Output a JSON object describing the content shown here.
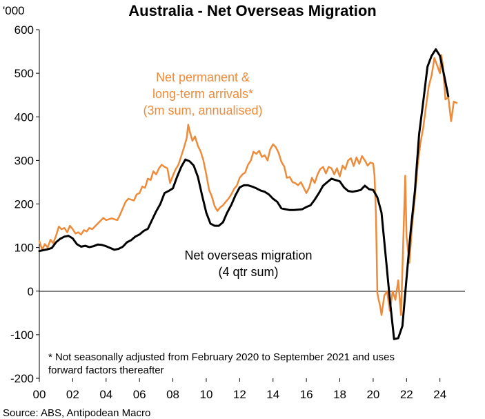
{
  "chart_data": {
    "type": "line",
    "title": "Australia - Net Overseas Migration",
    "y_unit_label": "'000",
    "ylim": [
      -200,
      600
    ],
    "y_ticks": [
      -200,
      -100,
      0,
      100,
      200,
      300,
      400,
      500,
      600
    ],
    "xlim": [
      2000,
      2025.5
    ],
    "x_ticks": [
      2000,
      2002,
      2004,
      2006,
      2008,
      2010,
      2012,
      2014,
      2016,
      2018,
      2020,
      2022,
      2024
    ],
    "x_tick_labels": [
      "00",
      "02",
      "04",
      "06",
      "08",
      "10",
      "12",
      "14",
      "16",
      "18",
      "20",
      "22",
      "24"
    ],
    "grid": false,
    "series": [
      {
        "name": "Net permanent & long-term arrivals* (3m sum, annualised)",
        "color": "#ED8B3A",
        "points": [
          [
            2000.0,
            115
          ],
          [
            2000.17,
            95
          ],
          [
            2000.33,
            108
          ],
          [
            2000.5,
            100
          ],
          [
            2000.67,
            118
          ],
          [
            2000.83,
            110
          ],
          [
            2001.0,
            127
          ],
          [
            2001.17,
            148
          ],
          [
            2001.33,
            142
          ],
          [
            2001.5,
            145
          ],
          [
            2001.67,
            135
          ],
          [
            2001.83,
            150
          ],
          [
            2002.0,
            142
          ],
          [
            2002.17,
            132
          ],
          [
            2002.33,
            135
          ],
          [
            2002.5,
            130
          ],
          [
            2002.67,
            140
          ],
          [
            2002.83,
            137
          ],
          [
            2003.0,
            145
          ],
          [
            2003.17,
            142
          ],
          [
            2003.5,
            155
          ],
          [
            2003.83,
            168
          ],
          [
            2004.0,
            163
          ],
          [
            2004.33,
            167
          ],
          [
            2004.67,
            163
          ],
          [
            2004.83,
            175
          ],
          [
            2005.0,
            190
          ],
          [
            2005.17,
            205
          ],
          [
            2005.33,
            212
          ],
          [
            2005.67,
            208
          ],
          [
            2005.83,
            222
          ],
          [
            2006.0,
            225
          ],
          [
            2006.17,
            240
          ],
          [
            2006.33,
            237
          ],
          [
            2006.5,
            258
          ],
          [
            2006.67,
            255
          ],
          [
            2006.83,
            275
          ],
          [
            2007.0,
            268
          ],
          [
            2007.17,
            282
          ],
          [
            2007.33,
            290
          ],
          [
            2007.5,
            285
          ],
          [
            2007.67,
            282
          ],
          [
            2007.83,
            248
          ],
          [
            2008.0,
            265
          ],
          [
            2008.17,
            280
          ],
          [
            2008.33,
            290
          ],
          [
            2008.5,
            310
          ],
          [
            2008.67,
            330
          ],
          [
            2008.83,
            352
          ],
          [
            2008.92,
            382
          ],
          [
            2009.0,
            368
          ],
          [
            2009.17,
            345
          ],
          [
            2009.33,
            355
          ],
          [
            2009.5,
            333
          ],
          [
            2009.67,
            320
          ],
          [
            2009.83,
            300
          ],
          [
            2010.0,
            268
          ],
          [
            2010.17,
            232
          ],
          [
            2010.33,
            218
          ],
          [
            2010.5,
            195
          ],
          [
            2010.67,
            184
          ],
          [
            2010.83,
            192
          ],
          [
            2011.0,
            197
          ],
          [
            2011.17,
            205
          ],
          [
            2011.33,
            212
          ],
          [
            2011.5,
            222
          ],
          [
            2011.67,
            235
          ],
          [
            2011.83,
            242
          ],
          [
            2012.0,
            260
          ],
          [
            2012.17,
            268
          ],
          [
            2012.33,
            272
          ],
          [
            2012.5,
            290
          ],
          [
            2012.67,
            300
          ],
          [
            2012.83,
            320
          ],
          [
            2013.0,
            315
          ],
          [
            2013.17,
            322
          ],
          [
            2013.33,
            308
          ],
          [
            2013.5,
            312
          ],
          [
            2013.67,
            300
          ],
          [
            2013.83,
            325
          ],
          [
            2014.0,
            337
          ],
          [
            2014.17,
            330
          ],
          [
            2014.33,
            318
          ],
          [
            2014.5,
            297
          ],
          [
            2014.67,
            286
          ],
          [
            2014.83,
            260
          ],
          [
            2015.0,
            262
          ],
          [
            2015.17,
            250
          ],
          [
            2015.33,
            248
          ],
          [
            2015.5,
            243
          ],
          [
            2015.67,
            250
          ],
          [
            2015.83,
            238
          ],
          [
            2016.0,
            225
          ],
          [
            2016.17,
            238
          ],
          [
            2016.33,
            260
          ],
          [
            2016.5,
            248
          ],
          [
            2016.67,
            268
          ],
          [
            2016.83,
            280
          ],
          [
            2017.0,
            285
          ],
          [
            2017.17,
            270
          ],
          [
            2017.33,
            285
          ],
          [
            2017.5,
            282
          ],
          [
            2017.67,
            268
          ],
          [
            2017.83,
            282
          ],
          [
            2018.0,
            263
          ],
          [
            2018.17,
            288
          ],
          [
            2018.33,
            280
          ],
          [
            2018.5,
            300
          ],
          [
            2018.67,
            305
          ],
          [
            2018.83,
            287
          ],
          [
            2019.0,
            307
          ],
          [
            2019.17,
            292
          ],
          [
            2019.33,
            310
          ],
          [
            2019.5,
            300
          ],
          [
            2019.67,
            288
          ],
          [
            2019.83,
            295
          ],
          [
            2020.0,
            293
          ],
          [
            2020.08,
            265
          ],
          [
            2020.17,
            170
          ],
          [
            2020.25,
            -5
          ],
          [
            2020.33,
            -20
          ],
          [
            2020.42,
            -35
          ],
          [
            2020.5,
            -55
          ],
          [
            2020.67,
            -10
          ],
          [
            2020.83,
            0
          ],
          [
            2021.0,
            -45
          ],
          [
            2021.17,
            0
          ],
          [
            2021.33,
            -20
          ],
          [
            2021.5,
            25
          ],
          [
            2021.67,
            -55
          ],
          [
            2021.83,
            150
          ],
          [
            2021.92,
            265
          ],
          [
            2022.0,
            125
          ],
          [
            2022.17,
            65
          ],
          [
            2022.33,
            150
          ],
          [
            2022.5,
            215
          ],
          [
            2022.67,
            290
          ],
          [
            2022.83,
            340
          ],
          [
            2023.0,
            375
          ],
          [
            2023.17,
            425
          ],
          [
            2023.33,
            470
          ],
          [
            2023.5,
            495
          ],
          [
            2023.67,
            535
          ],
          [
            2023.83,
            518
          ],
          [
            2024.0,
            500
          ],
          [
            2024.08,
            542
          ],
          [
            2024.17,
            520
          ],
          [
            2024.33,
            440
          ],
          [
            2024.5,
            445
          ],
          [
            2024.67,
            390
          ],
          [
            2024.83,
            435
          ],
          [
            2025.0,
            432
          ]
        ]
      },
      {
        "name": "Net overseas migration (4 qtr sum)",
        "color": "#000000",
        "points": [
          [
            2000.0,
            92
          ],
          [
            2000.25,
            94
          ],
          [
            2000.5,
            96
          ],
          [
            2000.75,
            99
          ],
          [
            2001.0,
            112
          ],
          [
            2001.25,
            120
          ],
          [
            2001.5,
            125
          ],
          [
            2001.75,
            127
          ],
          [
            2002.0,
            121
          ],
          [
            2002.25,
            108
          ],
          [
            2002.5,
            102
          ],
          [
            2002.75,
            104
          ],
          [
            2003.0,
            101
          ],
          [
            2003.25,
            103
          ],
          [
            2003.5,
            107
          ],
          [
            2003.75,
            106
          ],
          [
            2004.0,
            103
          ],
          [
            2004.25,
            99
          ],
          [
            2004.5,
            95
          ],
          [
            2004.75,
            97
          ],
          [
            2005.0,
            102
          ],
          [
            2005.25,
            112
          ],
          [
            2005.5,
            117
          ],
          [
            2005.75,
            125
          ],
          [
            2006.0,
            130
          ],
          [
            2006.25,
            138
          ],
          [
            2006.5,
            143
          ],
          [
            2006.75,
            163
          ],
          [
            2007.0,
            183
          ],
          [
            2007.25,
            200
          ],
          [
            2007.5,
            225
          ],
          [
            2007.75,
            230
          ],
          [
            2008.0,
            236
          ],
          [
            2008.25,
            262
          ],
          [
            2008.5,
            285
          ],
          [
            2008.75,
            302
          ],
          [
            2009.0,
            298
          ],
          [
            2009.25,
            288
          ],
          [
            2009.5,
            262
          ],
          [
            2009.75,
            220
          ],
          [
            2010.0,
            180
          ],
          [
            2010.25,
            155
          ],
          [
            2010.5,
            150
          ],
          [
            2010.75,
            150
          ],
          [
            2011.0,
            158
          ],
          [
            2011.25,
            180
          ],
          [
            2011.5,
            198
          ],
          [
            2011.75,
            220
          ],
          [
            2012.0,
            238
          ],
          [
            2012.25,
            243
          ],
          [
            2012.5,
            243
          ],
          [
            2012.75,
            240
          ],
          [
            2013.0,
            236
          ],
          [
            2013.25,
            231
          ],
          [
            2013.5,
            228
          ],
          [
            2013.75,
            222
          ],
          [
            2014.0,
            212
          ],
          [
            2014.25,
            205
          ],
          [
            2014.5,
            190
          ],
          [
            2014.75,
            188
          ],
          [
            2015.0,
            186
          ],
          [
            2015.25,
            186
          ],
          [
            2015.5,
            187
          ],
          [
            2015.75,
            188
          ],
          [
            2016.0,
            193
          ],
          [
            2016.25,
            197
          ],
          [
            2016.5,
            210
          ],
          [
            2016.75,
            225
          ],
          [
            2017.0,
            242
          ],
          [
            2017.25,
            250
          ],
          [
            2017.5,
            258
          ],
          [
            2017.75,
            255
          ],
          [
            2018.0,
            252
          ],
          [
            2018.25,
            238
          ],
          [
            2018.5,
            230
          ],
          [
            2018.75,
            228
          ],
          [
            2019.0,
            230
          ],
          [
            2019.25,
            232
          ],
          [
            2019.5,
            242
          ],
          [
            2019.75,
            234
          ],
          [
            2020.0,
            232
          ],
          [
            2020.25,
            215
          ],
          [
            2020.5,
            180
          ],
          [
            2020.75,
            80
          ],
          [
            2021.0,
            -20
          ],
          [
            2021.25,
            -110
          ],
          [
            2021.5,
            -108
          ],
          [
            2021.75,
            -80
          ],
          [
            2022.0,
            30
          ],
          [
            2022.25,
            140
          ],
          [
            2022.5,
            230
          ],
          [
            2022.75,
            360
          ],
          [
            2023.0,
            435
          ],
          [
            2023.25,
            515
          ],
          [
            2023.5,
            540
          ],
          [
            2023.75,
            555
          ],
          [
            2024.0,
            540
          ],
          [
            2024.25,
            495
          ],
          [
            2024.5,
            447
          ]
        ]
      }
    ],
    "annotations": {
      "orange_label": [
        "Net permanent &",
        "long-term arrivals*",
        "(3m sum, annualised)"
      ],
      "black_label": [
        "Net overseas migration",
        "(4 qtr sum)"
      ],
      "footnote": [
        "* Not seasonally adjusted from February 2020 to September 2021 and uses",
        "forward factors thereafter"
      ]
    },
    "source": "Source: ABS, Antipodean Macro"
  }
}
